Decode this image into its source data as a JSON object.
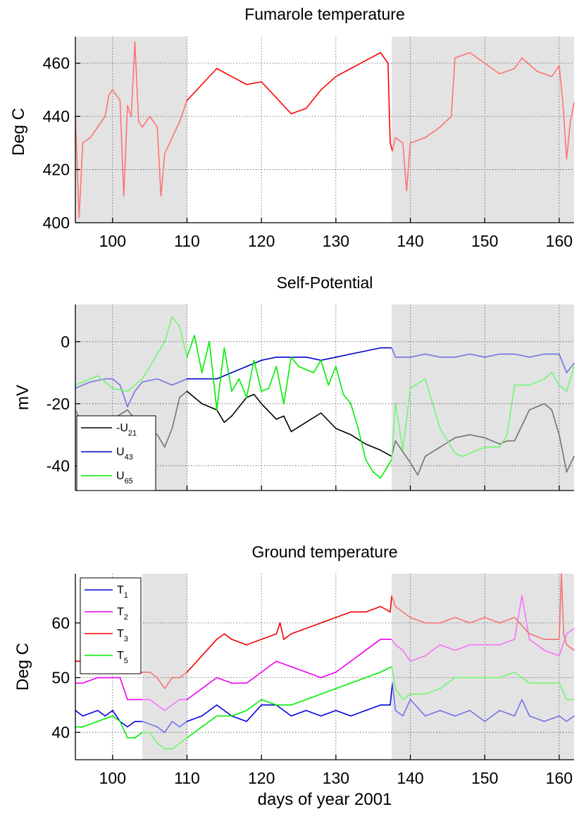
{
  "x_label": "days of year 2001",
  "chart_data": [
    {
      "type": "line",
      "title": "Fumarole temperature",
      "xlabel": "",
      "ylabel": "Deg C",
      "xlim": [
        95,
        162
      ],
      "ylim": [
        400,
        470
      ],
      "x_ticks": [
        100,
        110,
        120,
        130,
        140,
        150,
        160
      ],
      "y_ticks": [
        400,
        420,
        440,
        460
      ],
      "x_tick_labels": [
        "100",
        "110",
        "120",
        "130",
        "140",
        "150",
        "160"
      ],
      "y_tick_labels": [
        "400",
        "420",
        "440",
        "460"
      ],
      "grid": true,
      "shaded_ranges": [
        [
          95,
          110
        ],
        [
          137.5,
          162
        ]
      ],
      "series": [
        {
          "color": "#ff0000",
          "x": [
            95,
            95.5,
            96,
            97,
            98,
            99,
            99.5,
            100,
            101,
            101.5,
            102,
            102.5,
            103,
            103.5,
            104,
            105,
            106,
            106.5,
            107,
            108,
            109,
            110,
            112,
            114,
            116,
            118,
            120,
            122,
            124,
            126,
            128,
            130,
            132,
            134,
            136,
            137,
            137.3,
            137.6,
            138,
            139,
            139.5,
            140,
            142,
            144,
            145.5,
            146,
            148,
            150,
            152,
            154,
            155,
            157,
            159,
            160,
            160.5,
            161,
            161.5,
            162
          ],
          "y": [
            440,
            402,
            430,
            432,
            436,
            440,
            448,
            450,
            446,
            410,
            444,
            440,
            468,
            438,
            436,
            440,
            436,
            410,
            426,
            432,
            438,
            446,
            452,
            458,
            455,
            452,
            453,
            447,
            441,
            443,
            450,
            455,
            458,
            461,
            464,
            460,
            430,
            427,
            432,
            430,
            412,
            430,
            432,
            436,
            440,
            462,
            464,
            460,
            456,
            458,
            462,
            457,
            455,
            459,
            445,
            424,
            438,
            445
          ]
        }
      ]
    },
    {
      "type": "line",
      "title": "Self-Potential",
      "xlabel": "",
      "ylabel": "mV",
      "xlim": [
        95,
        162
      ],
      "ylim": [
        -48,
        12
      ],
      "x_ticks": [
        100,
        110,
        120,
        130,
        140,
        150,
        160
      ],
      "y_ticks": [
        -40,
        -20,
        0
      ],
      "y_tick_labels": [
        "-40",
        "-20",
        "0"
      ],
      "grid": true,
      "shaded_ranges": [
        [
          95,
          110
        ],
        [
          137.5,
          162
        ]
      ],
      "legend_position": "bottom-left",
      "series": [
        {
          "name": "-U21",
          "name_base": "-U",
          "name_sub": "21",
          "color": "#000000",
          "x": [
            95,
            96,
            98,
            100,
            102,
            104,
            106,
            107,
            108,
            109,
            110,
            112,
            114,
            115,
            116,
            118,
            119,
            120,
            122,
            123,
            124,
            126,
            128,
            130,
            132,
            134,
            136,
            137.5,
            138,
            140,
            141,
            142,
            144,
            146,
            148,
            150,
            152,
            153,
            154,
            156,
            158,
            159,
            160,
            161,
            162
          ],
          "y": [
            -22,
            -27,
            -26,
            -25,
            -22,
            -28,
            -30,
            -34,
            -28,
            -18,
            -16,
            -20,
            -22,
            -26,
            -24,
            -18,
            -17,
            -20,
            -25,
            -24,
            -29,
            -26,
            -23,
            -28,
            -30,
            -33,
            -35,
            -37,
            -32,
            -39,
            -43,
            -37,
            -34,
            -31,
            -30,
            -31,
            -33,
            -32,
            -32,
            -22,
            -20,
            -22,
            -30,
            -42,
            -37
          ]
        },
        {
          "name": "U43",
          "name_base": "U",
          "name_sub": "43",
          "color": "#0000cc",
          "x": [
            95,
            97,
            99,
            100,
            101,
            102,
            103,
            104,
            106,
            108,
            110,
            112,
            114,
            116,
            118,
            120,
            122,
            124,
            126,
            128,
            130,
            132,
            134,
            136,
            137.5,
            138,
            140,
            142,
            144,
            146,
            148,
            150,
            152,
            154,
            156,
            158,
            160,
            161,
            162
          ],
          "y": [
            -15,
            -13,
            -12,
            -12,
            -14,
            -21,
            -16,
            -13,
            -12,
            -14,
            -12,
            -12,
            -12,
            -10,
            -8,
            -6,
            -5,
            -5,
            -5,
            -6,
            -5,
            -4,
            -3,
            -2,
            -2,
            -5,
            -5,
            -4,
            -5,
            -5,
            -4,
            -5,
            -4,
            -4,
            -5,
            -4,
            -4,
            -10,
            -7
          ]
        },
        {
          "name": "U65",
          "name_base": "U",
          "name_sub": "65",
          "color": "#00ee00",
          "x": [
            95,
            97,
            98,
            99,
            100,
            102,
            104,
            106,
            107,
            108,
            109,
            110,
            111,
            112,
            113,
            114,
            115,
            116,
            117,
            118,
            119,
            120,
            121,
            122,
            123,
            124,
            125,
            126,
            127,
            128,
            129,
            130,
            131,
            132,
            133,
            134,
            135,
            136,
            137,
            137.5,
            138,
            139,
            140,
            142,
            144,
            146,
            147,
            148,
            150,
            152,
            153,
            154,
            156,
            158,
            159,
            160,
            161,
            162
          ],
          "y": [
            -14,
            -12,
            -11,
            -13,
            -15,
            -16,
            -12,
            -4,
            0,
            8,
            5,
            -5,
            2,
            -10,
            0,
            -22,
            -2,
            -16,
            -12,
            -18,
            -6,
            -16,
            -15,
            -8,
            -20,
            -5,
            -8,
            -9,
            -10,
            -6,
            -14,
            -8,
            -17,
            -20,
            -28,
            -38,
            -42,
            -44,
            -40,
            -38,
            -20,
            -35,
            -15,
            -12,
            -28,
            -36,
            -37,
            -36,
            -34,
            -34,
            -30,
            -14,
            -14,
            -12,
            -10,
            -14,
            -16,
            -8
          ]
        }
      ]
    },
    {
      "type": "line",
      "title": "Ground temperature",
      "xlabel": "days of year 2001",
      "ylabel": "Deg C",
      "xlim": [
        95,
        162
      ],
      "ylim": [
        35,
        69
      ],
      "x_ticks": [
        100,
        110,
        120,
        130,
        140,
        150,
        160
      ],
      "y_ticks": [
        40,
        50,
        60
      ],
      "x_tick_labels": [
        "100",
        "110",
        "120",
        "130",
        "140",
        "150",
        "160"
      ],
      "y_tick_labels": [
        "40",
        "50",
        "60"
      ],
      "grid": true,
      "shaded_ranges": [
        [
          104,
          110
        ],
        [
          137.5,
          162
        ]
      ],
      "legend_position": "top-left",
      "series": [
        {
          "name": "T1",
          "name_base": "T",
          "name_sub": "1",
          "color": "#0000dd",
          "x": [
            95,
            96,
            98,
            99,
            100,
            101,
            102,
            103,
            104,
            106,
            107,
            108,
            109,
            110,
            112,
            114,
            116,
            118,
            120,
            122,
            124,
            126,
            128,
            130,
            132,
            134,
            136,
            137.3,
            137.6,
            138,
            139,
            140,
            142,
            144,
            146,
            148,
            150,
            152,
            154,
            155,
            156,
            158,
            160,
            161,
            162
          ],
          "y": [
            44,
            43,
            44,
            43,
            44,
            42,
            41,
            42,
            42,
            41,
            40,
            42,
            41,
            42,
            43,
            45,
            43,
            42,
            45,
            45,
            43,
            44,
            43,
            44,
            43,
            44,
            45,
            45,
            49,
            44,
            43,
            46,
            43,
            44,
            43,
            44,
            42,
            44,
            43,
            46,
            43,
            42,
            43,
            42,
            43
          ]
        },
        {
          "name": "T2",
          "name_base": "T",
          "name_sub": "2",
          "color": "#ee00ee",
          "x": [
            95,
            96,
            98,
            100,
            101,
            102,
            103,
            104,
            105,
            106,
            107,
            108,
            109,
            110,
            112,
            114,
            116,
            117,
            118,
            120,
            122,
            124,
            126,
            128,
            130,
            132,
            134,
            136,
            137.5,
            138,
            139,
            140,
            142,
            144,
            146,
            148,
            150,
            152,
            154,
            155,
            156,
            158,
            160,
            161,
            162
          ],
          "y": [
            49,
            49,
            50,
            50,
            50,
            46,
            46,
            46,
            46,
            45,
            44,
            45,
            46,
            46,
            48,
            50,
            49,
            49,
            49,
            51,
            53,
            52,
            51,
            50,
            51,
            53,
            55,
            57,
            57,
            56,
            55,
            53,
            54,
            56,
            55,
            56,
            56,
            56,
            57,
            65,
            57,
            55,
            54,
            58,
            59
          ]
        },
        {
          "name": "T3",
          "name_base": "T",
          "name_sub": "3",
          "color": "#ee0000",
          "x": [
            95,
            96,
            98,
            100,
            101,
            102,
            103,
            104,
            105,
            106,
            107,
            108,
            109,
            110,
            112,
            114,
            115,
            116,
            118,
            120,
            122,
            122.5,
            123,
            124,
            126,
            128,
            130,
            132,
            134,
            136,
            137.3,
            137.5,
            138,
            140,
            142,
            144,
            146,
            148,
            150,
            152,
            154,
            156,
            158,
            160,
            160.3,
            160.6,
            161,
            162
          ],
          "y": [
            53,
            53,
            52,
            52,
            52,
            51,
            51,
            51,
            51,
            50,
            48,
            50,
            50,
            51,
            54,
            57,
            58,
            57,
            56,
            57,
            58,
            60,
            57,
            58,
            59,
            60,
            61,
            62,
            62,
            63,
            62,
            65,
            63,
            61,
            60,
            60,
            61,
            60,
            61,
            60,
            61,
            58,
            57,
            57,
            69,
            58,
            56,
            55
          ]
        },
        {
          "name": "T5",
          "name_base": "T",
          "name_sub": "5",
          "color": "#00ee00",
          "x": [
            95,
            96,
            98,
            100,
            101,
            102,
            103,
            104,
            105,
            106,
            107,
            108,
            109,
            110,
            112,
            114,
            116,
            118,
            120,
            122,
            124,
            126,
            128,
            130,
            132,
            134,
            136,
            137.5,
            138,
            139,
            140,
            142,
            144,
            146,
            148,
            150,
            152,
            154,
            156,
            158,
            160,
            161,
            162
          ],
          "y": [
            41,
            41,
            42,
            43,
            42,
            39,
            39,
            40,
            40,
            38,
            37,
            37,
            38,
            39,
            41,
            43,
            43,
            44,
            46,
            45,
            45,
            46,
            47,
            48,
            49,
            50,
            51,
            52,
            48,
            46,
            47,
            47,
            48,
            50,
            50,
            50,
            50,
            51,
            49,
            49,
            49,
            46,
            46
          ]
        }
      ]
    }
  ]
}
